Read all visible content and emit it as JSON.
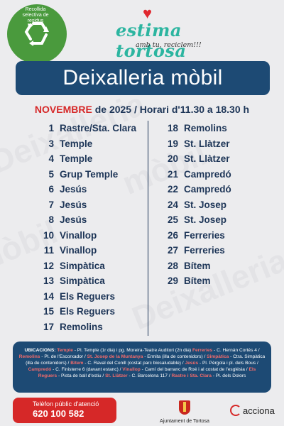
{
  "badge": {
    "text": "Recollida selectiva de residus"
  },
  "brand": {
    "name_part1": "estima",
    "name_part2": "tortosa",
    "slogan": "amb tu, reciclem!!!"
  },
  "title": "Deixalleria mòbil",
  "subtitle": {
    "month": "NOVEMBRE",
    "rest": "de 2025 / Horari d'11.30 a 18.30 h"
  },
  "schedule_left": [
    {
      "day": "1",
      "place": "Rastre/Sta. Clara"
    },
    {
      "day": "3",
      "place": "Temple"
    },
    {
      "day": "4",
      "place": "Temple"
    },
    {
      "day": "5",
      "place": "Grup Temple"
    },
    {
      "day": "6",
      "place": "Jesús"
    },
    {
      "day": "7",
      "place": "Jesús"
    },
    {
      "day": "8",
      "place": "Jesús"
    },
    {
      "day": "10",
      "place": "Vinallop"
    },
    {
      "day": "11",
      "place": "Vinallop"
    },
    {
      "day": "12",
      "place": "Simpàtica"
    },
    {
      "day": "13",
      "place": "Simpàtica"
    },
    {
      "day": "14",
      "place": "Els Reguers"
    },
    {
      "day": "15",
      "place": "Els Reguers"
    },
    {
      "day": "17",
      "place": "Remolins"
    }
  ],
  "schedule_right": [
    {
      "day": "18",
      "place": "Remolins"
    },
    {
      "day": "19",
      "place": "St. Llàtzer"
    },
    {
      "day": "20",
      "place": "St. Llàtzer"
    },
    {
      "day": "21",
      "place": "Campredó"
    },
    {
      "day": "22",
      "place": "Campredó"
    },
    {
      "day": "24",
      "place": "St. Josep"
    },
    {
      "day": "25",
      "place": "St. Josep"
    },
    {
      "day": "26",
      "place": "Ferreries"
    },
    {
      "day": "27",
      "place": "Ferreries"
    },
    {
      "day": "28",
      "place": "Bítem"
    },
    {
      "day": "29",
      "place": "Bítem"
    }
  ],
  "locations": {
    "label": "UBICACIONS:",
    "segments": [
      {
        "hl": "Temple",
        "text": " - Pl. Temple (1r dia) i pg. Moreira-Teatre Auditori (2n dia)"
      },
      {
        "hl": "Ferreries",
        "text": " - C. Hernán Cortés 4 / "
      },
      {
        "hl": "Remolins",
        "text": " - Pl. de l'Escorxador / "
      },
      {
        "hl": "St. Josep de la Muntanya",
        "text": " - Ermita (illa de contenidors) / "
      },
      {
        "hl": "Simpàtica",
        "text": " - Ctra. Simpàtica (illa de contenidors) / "
      },
      {
        "hl": "Bítem",
        "text": " - C. Raval del Conill (costat parc biosaludable) / "
      },
      {
        "hl": "Jesús",
        "text": " - Pl. Pèrgola i pl. dels Bous / "
      },
      {
        "hl": "Campredó",
        "text": " - C. Finisterre 6 (davant estanc) / "
      },
      {
        "hl": "Vinallop",
        "text": " - Camí del barranc de Roé i al costat de l'església / "
      },
      {
        "hl": "Els Reguers",
        "text": " - Pista de ball d'estiu / "
      },
      {
        "hl": "St. Llàtzer",
        "text": " - C. Barcelona 117 / "
      },
      {
        "hl": "Rastre i Sta. Clara",
        "text": " - Pl. dels Dolors"
      }
    ]
  },
  "phone": {
    "label": "Telèfon públic d'atenció",
    "number": "620 100 582"
  },
  "council": {
    "name": "Ajuntament de Tortosa"
  },
  "sponsor": {
    "name": "acciona"
  },
  "background_words": [
    "Deixalleria",
    "mòbil"
  ],
  "colors": {
    "navy": "#1d4a74",
    "red": "#d62828",
    "green": "#4a9a3d",
    "teal": "#2cb5a0"
  }
}
